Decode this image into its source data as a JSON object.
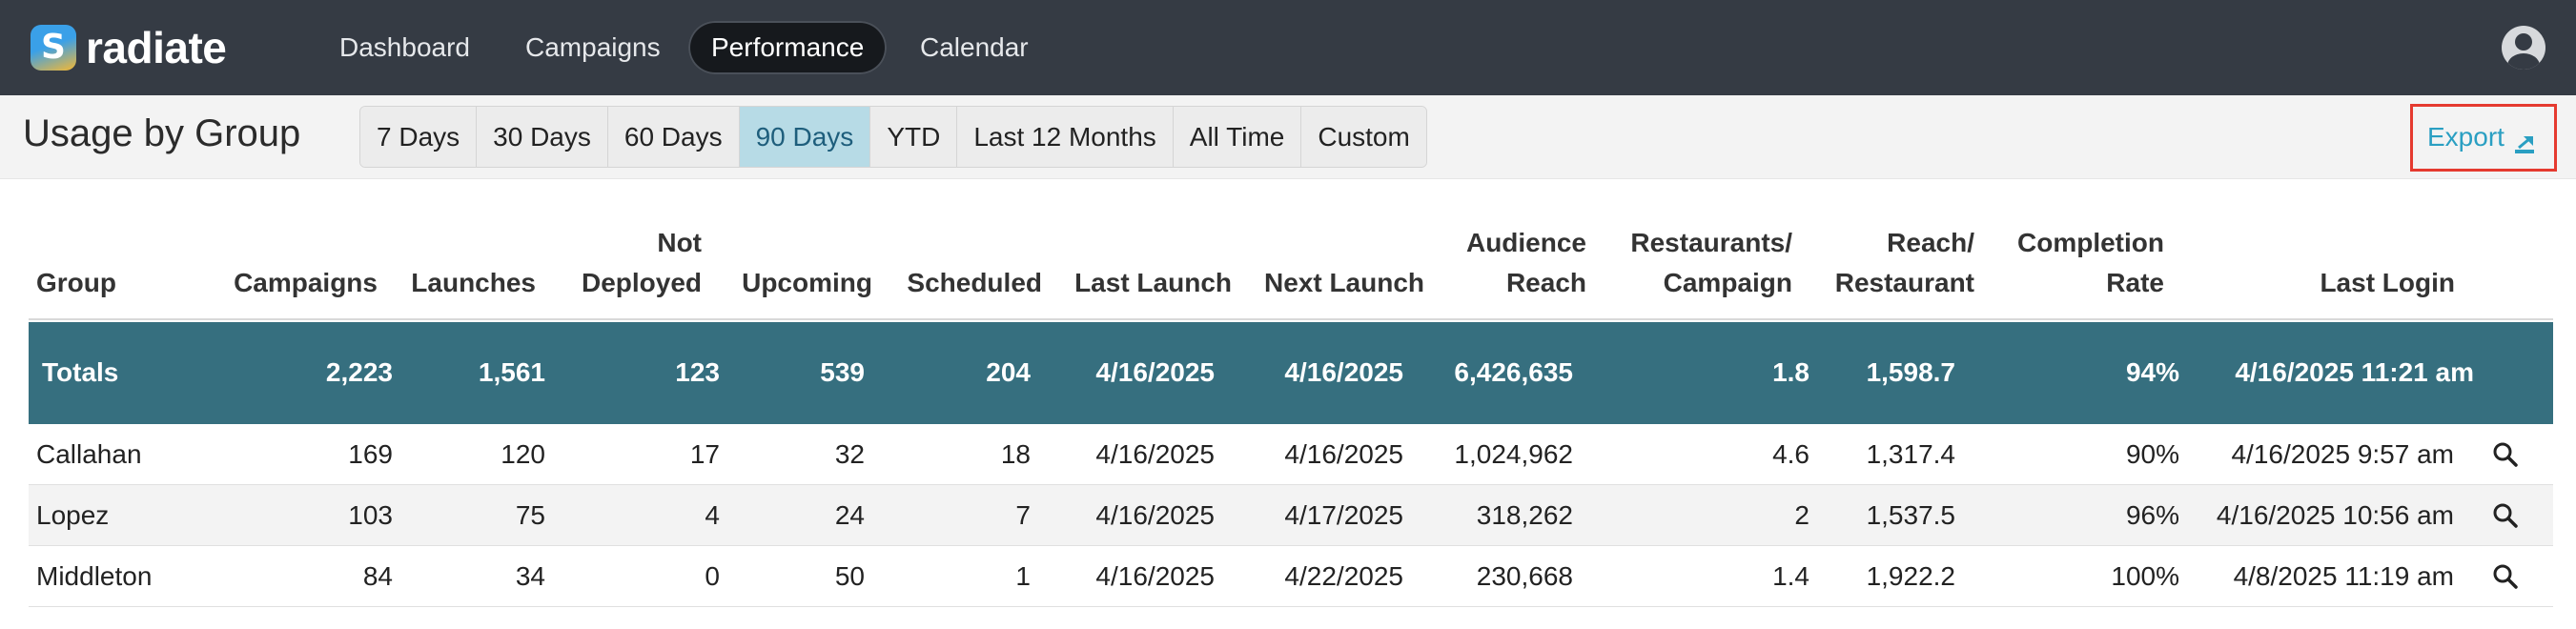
{
  "app": {
    "brand": "radiate",
    "logo_letter": "S"
  },
  "nav": {
    "items": [
      {
        "label": "Dashboard"
      },
      {
        "label": "Campaigns"
      },
      {
        "label": "Performance",
        "active": true
      },
      {
        "label": "Calendar"
      }
    ],
    "user_icon": "user-avatar-icon"
  },
  "subheader": {
    "title": "Usage by Group",
    "ranges": [
      {
        "label": "7 Days"
      },
      {
        "label": "30 Days"
      },
      {
        "label": "60 Days"
      },
      {
        "label": "90 Days",
        "active": true
      },
      {
        "label": "YTD"
      },
      {
        "label": "Last 12 Months"
      },
      {
        "label": "All Time"
      },
      {
        "label": "Custom"
      }
    ],
    "export_label": "Export",
    "export_icon": "export-icon",
    "highlight_color": "#e53a2f"
  },
  "table": {
    "headers": {
      "group": [
        "Group"
      ],
      "campaigns": [
        "Campaigns"
      ],
      "launches": [
        "Launches"
      ],
      "not_deployed": [
        "Not",
        "Deployed"
      ],
      "upcoming": [
        "Upcoming"
      ],
      "scheduled": [
        "Scheduled"
      ],
      "last_launch": [
        "Last Launch"
      ],
      "next_launch": [
        "Next Launch"
      ],
      "audience_reach": [
        "Audience",
        "Reach"
      ],
      "restaurants_per_campaign": [
        "Restaurants/",
        "Campaign"
      ],
      "reach_per_restaurant": [
        "Reach/",
        "Restaurant"
      ],
      "completion_rate": [
        "Completion",
        "Rate"
      ],
      "last_login": [
        "Last Login"
      ]
    },
    "totals": {
      "group": "Totals",
      "campaigns": "2,223",
      "launches": "1,561",
      "not_deployed": "123",
      "upcoming": "539",
      "scheduled": "204",
      "last_launch": "4/16/2025",
      "next_launch": "4/16/2025",
      "audience_reach": "6,426,635",
      "restaurants_per_campaign": "1.8",
      "reach_per_restaurant": "1,598.7",
      "completion_rate": "94%",
      "last_login": "4/16/2025 11:21 am"
    },
    "rows": [
      {
        "group": "Callahan",
        "campaigns": "169",
        "launches": "120",
        "not_deployed": "17",
        "upcoming": "32",
        "scheduled": "18",
        "last_launch": "4/16/2025",
        "next_launch": "4/16/2025",
        "audience_reach": "1,024,962",
        "restaurants_per_campaign": "4.6",
        "reach_per_restaurant": "1,317.4",
        "completion_rate": "90%",
        "last_login": "4/16/2025 9:57 am"
      },
      {
        "group": "Lopez",
        "campaigns": "103",
        "launches": "75",
        "not_deployed": "4",
        "upcoming": "24",
        "scheduled": "7",
        "last_launch": "4/16/2025",
        "next_launch": "4/17/2025",
        "audience_reach": "318,262",
        "restaurants_per_campaign": "2",
        "reach_per_restaurant": "1,537.5",
        "completion_rate": "96%",
        "last_login": "4/16/2025 10:56 am"
      },
      {
        "group": "Middleton",
        "campaigns": "84",
        "launches": "34",
        "not_deployed": "0",
        "upcoming": "50",
        "scheduled": "1",
        "last_launch": "4/16/2025",
        "next_launch": "4/22/2025",
        "audience_reach": "230,668",
        "restaurants_per_campaign": "1.4",
        "reach_per_restaurant": "1,922.2",
        "completion_rate": "100%",
        "last_login": "4/8/2025 11:19 am"
      }
    ],
    "row_action_icon": "magnifier-icon",
    "totals_color": "#366f7f"
  }
}
